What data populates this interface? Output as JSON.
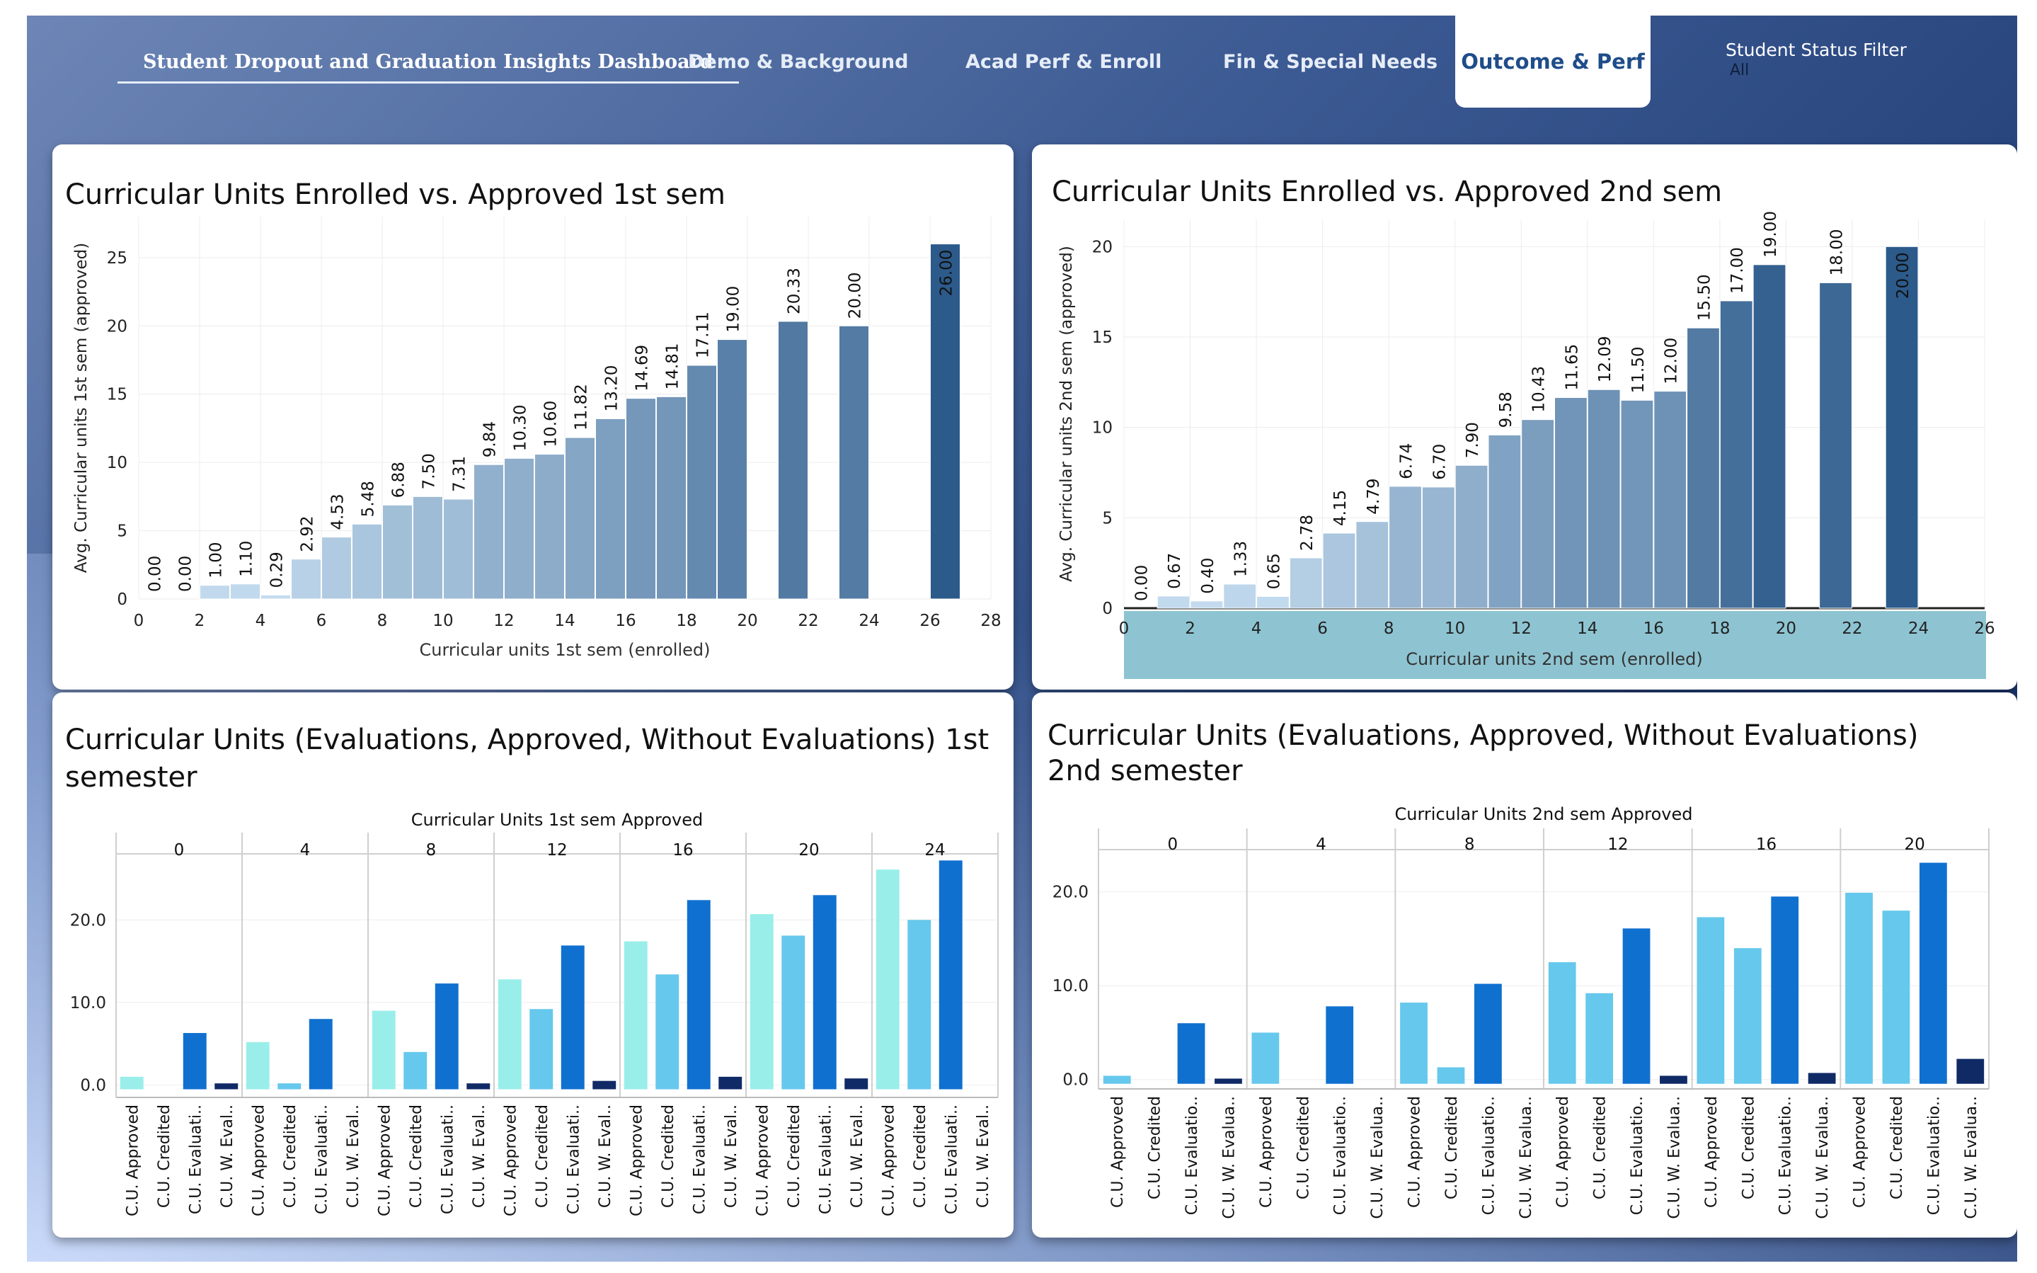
{
  "nav": {
    "title": "Student Dropout and Graduation Insights Dashboard",
    "tabs": [
      "Demo & Background",
      "Acad Perf & Enroll",
      "Fin & Special Needs",
      "Outcome & Perf"
    ],
    "active_tab": "Outcome & Perf",
    "filter_label": "Student Status Filter",
    "filter_value": "All"
  },
  "panels": {
    "p1_title": "Curricular Units Enrolled vs. Approved 1st sem",
    "p2_title": "Curricular Units Enrolled vs. Approved 2nd sem",
    "p3_title_line1": "Curricular Units (Evaluations, Approved, Without Evaluations) 1st",
    "p3_title_line2": "semester",
    "p4_title_line1": "Curricular Units (Evaluations, Approved, Without Evaluations)",
    "p4_title_line2": "2nd semester"
  },
  "chart_data": [
    {
      "type": "bar",
      "title": "Curricular Units Enrolled vs. Approved 1st sem",
      "xlabel": "Curricular units 1st sem (enrolled)",
      "ylabel": "Avg. Curricular units 1st sem (approved)",
      "x": [
        0,
        1,
        2,
        3,
        4,
        5,
        6,
        7,
        8,
        9,
        10,
        11,
        12,
        13,
        14,
        15,
        16,
        17,
        18,
        19,
        21,
        23,
        26
      ],
      "values": [
        0.0,
        0.0,
        1.0,
        1.1,
        0.29,
        2.92,
        4.53,
        5.48,
        6.88,
        7.5,
        7.31,
        9.84,
        10.3,
        10.6,
        11.82,
        13.2,
        14.69,
        14.81,
        17.11,
        19.0,
        20.33,
        20.0,
        26.0
      ],
      "labels": [
        "0.00",
        "0.00",
        "1.00",
        "1.10",
        "0.29",
        "2.92",
        "4.53",
        "5.48",
        "6.88",
        "7.50",
        "7.31",
        "9.84",
        "10.30",
        "10.60",
        "11.82",
        "13.20",
        "14.69",
        "14.81",
        "17.11",
        "19.00",
        "20.33",
        "20.00",
        "26.00"
      ],
      "xlim": [
        0,
        28
      ],
      "ylim": [
        0,
        28
      ],
      "xticks": [
        "0",
        "2",
        "4",
        "6",
        "8",
        "10",
        "12",
        "14",
        "16",
        "18",
        "20",
        "22",
        "24",
        "26",
        "28"
      ],
      "yticks": [
        "0",
        "5",
        "10",
        "15",
        "20",
        "25"
      ],
      "color_scale": [
        "#c6ddf0",
        "#2c5a8a"
      ]
    },
    {
      "type": "bar",
      "title": "Curricular Units Enrolled vs. Approved 2nd sem",
      "xlabel": "Curricular units 2nd sem (enrolled)",
      "ylabel": "Avg. Curricular units 2nd sem (approved)",
      "x": [
        0,
        1,
        2,
        3,
        4,
        5,
        6,
        7,
        8,
        9,
        10,
        11,
        12,
        13,
        14,
        15,
        16,
        17,
        18,
        19,
        21,
        23
      ],
      "values": [
        0.0,
        0.67,
        0.4,
        1.33,
        0.65,
        2.78,
        4.15,
        4.79,
        6.74,
        6.7,
        7.9,
        9.58,
        10.43,
        11.65,
        12.09,
        11.5,
        12.0,
        15.5,
        17.0,
        19.0,
        18.0,
        20.0
      ],
      "labels": [
        "0.00",
        "0.67",
        "0.40",
        "1.33",
        "0.65",
        "2.78",
        "4.15",
        "4.79",
        "6.74",
        "6.70",
        "7.90",
        "9.58",
        "10.43",
        "11.65",
        "12.09",
        "11.50",
        "12.00",
        "15.50",
        "17.00",
        "19.00",
        "18.00",
        "20.00"
      ],
      "xlim": [
        0,
        26
      ],
      "ylim": [
        0,
        21.5
      ],
      "xticks": [
        "0",
        "2",
        "4",
        "6",
        "8",
        "10",
        "12",
        "14",
        "16",
        "18",
        "20",
        "22",
        "24",
        "26"
      ],
      "yticks": [
        "0",
        "5",
        "10",
        "15",
        "20"
      ],
      "x_axis_band_color": "#8ec4d2",
      "color_scale": [
        "#c6ddf0",
        "#2c5a8a"
      ]
    },
    {
      "type": "bar",
      "title": "Curricular Units (Evaluations, Approved, Without Evaluations) 1st semester",
      "facet_label": "Curricular Units 1st sem Approved",
      "facets": [
        "0",
        "4",
        "8",
        "12",
        "16",
        "20",
        "24"
      ],
      "categories": [
        "C.U. Approved",
        "C.U. Credited",
        "C.U. Evaluati..",
        "C.U. W. Eval.."
      ],
      "series_colors": [
        "#9aeeea",
        "#66c8ec",
        "#1070d0",
        "#102a66"
      ],
      "values": [
        [
          1.0,
          0.0,
          6.3,
          0.2
        ],
        [
          5.2,
          0.2,
          8.0,
          0.0
        ],
        [
          9.0,
          4.0,
          12.3,
          0.2
        ],
        [
          12.8,
          9.2,
          16.9,
          0.5
        ],
        [
          17.4,
          13.4,
          22.4,
          1.0
        ],
        [
          20.7,
          18.1,
          23.0,
          0.8
        ],
        [
          26.1,
          20.0,
          27.2,
          0.0
        ]
      ],
      "ylim": [
        -1.5,
        28
      ],
      "yticks": [
        "0.0",
        "10.0",
        "20.0"
      ]
    },
    {
      "type": "bar",
      "title": "Curricular Units (Evaluations, Approved, Without Evaluations) 2nd semester",
      "facet_label": "Curricular Units 2nd sem Approved",
      "facets": [
        "0",
        "4",
        "8",
        "12",
        "16",
        "20"
      ],
      "categories": [
        "C.U. Approved",
        "C.U. Credited",
        "C.U. Evaluatio..",
        "C.U. W. Evalua.."
      ],
      "series_colors": [
        "#66c8ec",
        "#66c8ec",
        "#1070d0",
        "#102a66"
      ],
      "values": [
        [
          0.4,
          0.0,
          6.0,
          0.1
        ],
        [
          5.0,
          0.0,
          7.8,
          0.0
        ],
        [
          8.2,
          1.3,
          10.2,
          0.0
        ],
        [
          12.5,
          9.2,
          16.1,
          0.4
        ],
        [
          17.3,
          14.0,
          19.5,
          0.7
        ],
        [
          19.9,
          18.0,
          23.1,
          2.2
        ]
      ],
      "ylim": [
        -1,
        24.5
      ],
      "yticks": [
        "0.0",
        "10.0",
        "20.0"
      ]
    }
  ]
}
